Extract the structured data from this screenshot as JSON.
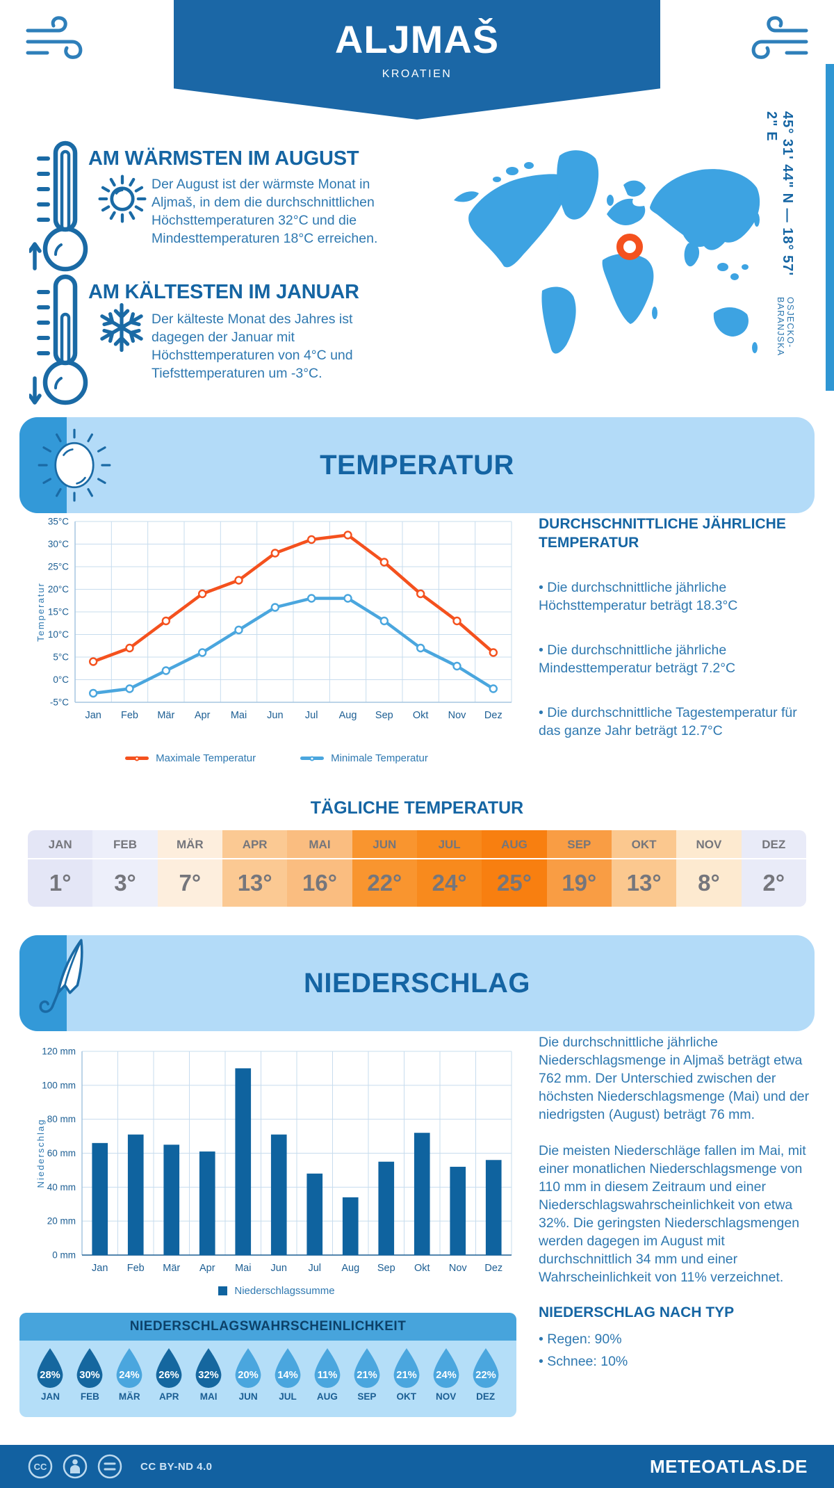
{
  "header": {
    "title": "ALJMAŠ",
    "subtitle": "KROATIEN"
  },
  "highlights": {
    "warm": {
      "title": "AM WÄRMSTEN IM AUGUST",
      "text": "Der August ist der wärmste Monat in Aljmaš, in dem die durchschnittlichen Höchsttemperaturen 32°C und die Mindesttemperaturen 18°C erreichen."
    },
    "cold": {
      "title": "AM KÄLTESTEN IM JANUAR",
      "text": "Der kälteste Monat des Jahres ist dagegen der Januar mit Höchsttemperaturen von 4°C und Tiefsttemperaturen um -3°C."
    }
  },
  "map": {
    "coordinates": "45° 31' 44\" N — 18° 57' 2\" E",
    "region": "OSJECKO-BARANJSKA",
    "marker_color": "#f4511e",
    "land_color": "#3da3e2"
  },
  "temperature": {
    "section_title": "TEMPERATUR",
    "stats_title": "DURCHSCHNITTLICHE JÄHRLICHE TEMPERATUR",
    "stats": [
      "Die durchschnittliche jährliche Höchsttemperatur beträgt 18.3°C",
      "Die durchschnittliche jährliche Mindesttemperatur beträgt 7.2°C",
      "Die durchschnittliche Tagestemperatur für das ganze Jahr beträgt 12.7°C"
    ],
    "daily_title": "TÄGLICHE TEMPERATUR",
    "monthly": {
      "months": [
        "JAN",
        "FEB",
        "MÄR",
        "APR",
        "MAI",
        "JUN",
        "JUL",
        "AUG",
        "SEP",
        "OKT",
        "NOV",
        "DEZ"
      ],
      "values": [
        "1°",
        "3°",
        "7°",
        "13°",
        "16°",
        "22°",
        "24°",
        "25°",
        "19°",
        "13°",
        "8°",
        "2°"
      ],
      "colors": [
        "#e4e6f6",
        "#edeffa",
        "#fdeedd",
        "#fbc993",
        "#fabd80",
        "#f9952f",
        "#f88a1d",
        "#f87f10",
        "#f99d44",
        "#fbc88f",
        "#fdead0",
        "#e9ebf8"
      ]
    }
  },
  "precipitation": {
    "section_title": "NIEDERSCHLAG",
    "paragraphs": [
      "Die durchschnittliche jährliche Niederschlagsmenge in Aljmaš beträgt etwa 762 mm. Der Unterschied zwischen der höchsten Niederschlagsmenge (Mai) und der niedrigsten (August) beträgt 76 mm.",
      "Die meisten Niederschläge fallen im Mai, mit einer monatlichen Niederschlagsmenge von 110 mm in diesem Zeitraum und einer Niederschlagswahrscheinlichkeit von etwa 32%. Die geringsten Niederschlagsmengen werden dagegen im August mit durchschnittlich 34 mm und einer Wahrscheinlichkeit von 11% verzeichnet."
    ],
    "type_title": "NIEDERSCHLAG NACH TYP",
    "types": [
      "Regen: 90%",
      "Schnee: 10%"
    ],
    "probability": {
      "title": "NIEDERSCHLAGSWAHRSCHEINLICHKEIT",
      "months": [
        "JAN",
        "FEB",
        "MÄR",
        "APR",
        "MAI",
        "JUN",
        "JUL",
        "AUG",
        "SEP",
        "OKT",
        "NOV",
        "DEZ"
      ],
      "values": [
        28,
        30,
        24,
        26,
        32,
        20,
        14,
        11,
        21,
        21,
        24,
        22
      ],
      "levels": [
        "dark",
        "dark",
        "light",
        "dark",
        "dark",
        "light",
        "light",
        "light",
        "light",
        "light",
        "light",
        "light"
      ],
      "colors": {
        "dark": "#15679f",
        "light": "#4aa6de"
      }
    }
  },
  "footer": {
    "license": "CC BY-ND 4.0",
    "site": "METEOATLAS.DE"
  },
  "chart_data": [
    {
      "type": "line",
      "categories": [
        "Jan",
        "Feb",
        "Mär",
        "Apr",
        "Mai",
        "Jun",
        "Jul",
        "Aug",
        "Sep",
        "Okt",
        "Nov",
        "Dez"
      ],
      "series": [
        {
          "name": "Maximale Temperatur",
          "color": "#f4511e",
          "values": [
            4,
            7,
            13,
            19,
            22,
            28,
            31,
            32,
            26,
            19,
            13,
            6
          ]
        },
        {
          "name": "Minimale Temperatur",
          "color": "#4aa6de",
          "values": [
            -3,
            -2,
            2,
            6,
            11,
            16,
            18,
            18,
            13,
            7,
            3,
            -2
          ]
        }
      ],
      "ylabel": "Temperatur",
      "xlabel": "",
      "ylim": [
        -5,
        35
      ],
      "ytick_step": 5,
      "yunit": "°C",
      "grid": true,
      "legend_position": "bottom"
    },
    {
      "type": "bar",
      "categories": [
        "Jan",
        "Feb",
        "Mär",
        "Apr",
        "Mai",
        "Jun",
        "Jul",
        "Aug",
        "Sep",
        "Okt",
        "Nov",
        "Dez"
      ],
      "series": [
        {
          "name": "Niederschlagssumme",
          "color": "#0f639f",
          "values": [
            66,
            71,
            65,
            61,
            110,
            71,
            48,
            34,
            55,
            72,
            52,
            56
          ]
        }
      ],
      "ylabel": "Niederschlag",
      "xlabel": "",
      "ylim": [
        0,
        120
      ],
      "ytick_step": 20,
      "yunit": " mm",
      "grid": true,
      "legend_position": "bottom"
    }
  ]
}
